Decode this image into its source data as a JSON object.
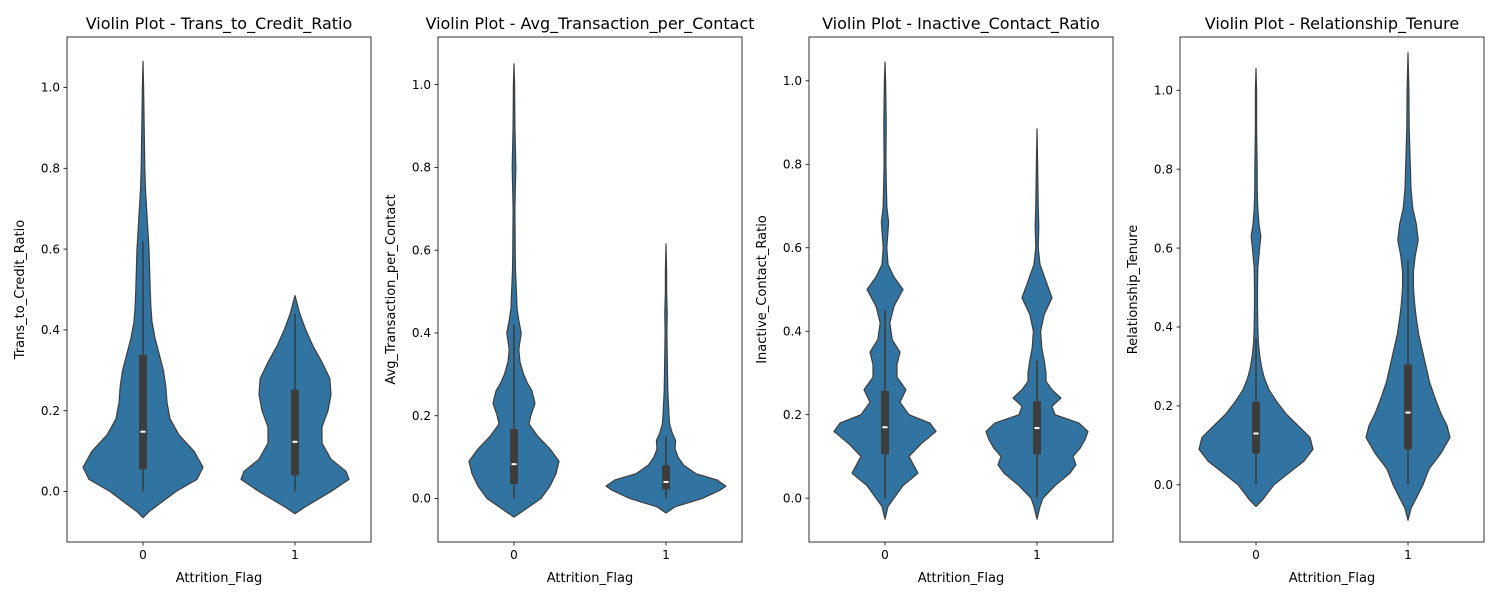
{
  "colors": {
    "violin": "#3274a1",
    "edge": "#3d3d3d",
    "box": "#3d3d3d",
    "median": "#ffffff"
  },
  "chart_data": [
    {
      "type": "violin",
      "title": "Violin Plot - Trans_to_Credit_Ratio",
      "xlabel": "Attrition_Flag",
      "ylabel": "Trans_to_Credit_Ratio",
      "categories": [
        "0",
        "1"
      ],
      "ylim": [
        -0.125,
        1.125
      ],
      "yticks": [
        0.0,
        0.2,
        0.4,
        0.6,
        0.8,
        1.0
      ],
      "ytick_labels": [
        "0.0",
        "0.2",
        "0.4",
        "0.6",
        "0.8",
        "1.0"
      ],
      "grid": false,
      "violins": [
        {
          "y": [
            -0.065,
            -0.05,
            0.0,
            0.03,
            0.06,
            0.1,
            0.14,
            0.18,
            0.22,
            0.26,
            0.3,
            0.34,
            0.38,
            0.42,
            0.46,
            0.5,
            0.55,
            0.6,
            0.65,
            0.7,
            0.75,
            0.8,
            0.9,
            1.0,
            1.065
          ],
          "w": [
            0.0,
            0.1,
            0.55,
            0.9,
            1.0,
            0.85,
            0.6,
            0.45,
            0.4,
            0.38,
            0.34,
            0.27,
            0.2,
            0.15,
            0.13,
            0.12,
            0.11,
            0.1,
            0.08,
            0.06,
            0.04,
            0.03,
            0.02,
            0.01,
            0.0
          ],
          "q1": 0.055,
          "median": 0.148,
          "q3": 0.338,
          "whisker_low": 0.0,
          "whisker_high": 0.62
        },
        {
          "y": [
            -0.055,
            -0.04,
            0.0,
            0.03,
            0.05,
            0.08,
            0.12,
            0.16,
            0.2,
            0.24,
            0.28,
            0.32,
            0.36,
            0.4,
            0.44,
            0.485
          ],
          "w": [
            0.0,
            0.15,
            0.6,
            0.9,
            0.85,
            0.6,
            0.45,
            0.45,
            0.55,
            0.6,
            0.58,
            0.45,
            0.3,
            0.18,
            0.08,
            0.0
          ],
          "q1": 0.04,
          "median": 0.123,
          "q3": 0.252,
          "whisker_low": 0.0,
          "whisker_high": 0.44
        }
      ]
    },
    {
      "type": "violin",
      "title": "Violin Plot - Avg_Transaction_per_Contact",
      "xlabel": "Attrition_Flag",
      "ylabel": "Avg_Transaction_per_Contact",
      "categories": [
        "0",
        "1"
      ],
      "ylim": [
        -0.105,
        1.115
      ],
      "yticks": [
        0.0,
        0.2,
        0.4,
        0.6,
        0.8,
        1.0
      ],
      "ytick_labels": [
        "0.0",
        "0.2",
        "0.4",
        "0.6",
        "0.8",
        "1.0"
      ],
      "grid": false,
      "violins": [
        {
          "y": [
            -0.045,
            -0.03,
            0.0,
            0.03,
            0.06,
            0.09,
            0.12,
            0.15,
            0.18,
            0.2,
            0.23,
            0.26,
            0.28,
            0.3,
            0.33,
            0.36,
            0.4,
            0.43,
            0.46,
            0.5,
            0.55,
            0.6,
            0.7,
            0.8,
            0.9,
            1.0,
            1.05
          ],
          "w": [
            0.0,
            0.15,
            0.45,
            0.6,
            0.7,
            0.75,
            0.6,
            0.4,
            0.25,
            0.28,
            0.35,
            0.3,
            0.22,
            0.16,
            0.1,
            0.08,
            0.12,
            0.08,
            0.05,
            0.04,
            0.025,
            0.02,
            0.015,
            0.03,
            0.015,
            0.01,
            0.0
          ],
          "q1": 0.035,
          "median": 0.083,
          "q3": 0.168,
          "whisker_low": 0.0,
          "whisker_high": 0.42
        },
        {
          "y": [
            -0.035,
            -0.02,
            0.0,
            0.02,
            0.03,
            0.045,
            0.06,
            0.08,
            0.1,
            0.12,
            0.14,
            0.16,
            0.18,
            0.2,
            0.23,
            0.26,
            0.3,
            0.35,
            0.4,
            0.45,
            0.5,
            0.55,
            0.615
          ],
          "w": [
            0.0,
            0.15,
            0.6,
            0.9,
            1.0,
            0.85,
            0.5,
            0.3,
            0.2,
            0.15,
            0.16,
            0.1,
            0.06,
            0.05,
            0.04,
            0.03,
            0.025,
            0.02,
            0.015,
            0.02,
            0.01,
            0.01,
            0.0
          ],
          "q1": 0.022,
          "median": 0.04,
          "q3": 0.08,
          "whisker_low": 0.0,
          "whisker_high": 0.15
        }
      ]
    },
    {
      "type": "violin",
      "title": "Violin Plot - Inactive_Contact_Ratio",
      "xlabel": "Attrition_Flag",
      "ylabel": "Inactive_Contact_Ratio",
      "categories": [
        "0",
        "1"
      ],
      "ylim": [
        -0.105,
        1.105
      ],
      "yticks": [
        0.0,
        0.2,
        0.4,
        0.6,
        0.8,
        1.0
      ],
      "ytick_labels": [
        "0.0",
        "0.2",
        "0.4",
        "0.6",
        "0.8",
        "1.0"
      ],
      "grid": false,
      "violins": [
        {
          "y": [
            -0.05,
            -0.02,
            0.0,
            0.03,
            0.06,
            0.1,
            0.13,
            0.16,
            0.18,
            0.2,
            0.23,
            0.26,
            0.29,
            0.32,
            0.35,
            0.38,
            0.42,
            0.46,
            0.5,
            0.53,
            0.56,
            0.6,
            0.64,
            0.66,
            0.7,
            0.8,
            0.9,
            1.0,
            1.045
          ],
          "w": [
            0.0,
            0.05,
            0.15,
            0.3,
            0.55,
            0.4,
            0.6,
            0.85,
            0.75,
            0.4,
            0.25,
            0.35,
            0.2,
            0.2,
            0.25,
            0.12,
            0.08,
            0.15,
            0.3,
            0.15,
            0.05,
            0.03,
            0.05,
            0.06,
            0.03,
            0.015,
            0.02,
            0.01,
            0.0
          ],
          "q1": 0.105,
          "median": 0.17,
          "q3": 0.257,
          "whisker_low": 0.0,
          "whisker_high": 0.45
        },
        {
          "y": [
            -0.05,
            -0.02,
            0.0,
            0.03,
            0.06,
            0.08,
            0.1,
            0.12,
            0.14,
            0.16,
            0.18,
            0.2,
            0.22,
            0.24,
            0.26,
            0.28,
            0.3,
            0.33,
            0.36,
            0.4,
            0.44,
            0.48,
            0.52,
            0.56,
            0.6,
            0.65,
            0.7,
            0.8,
            0.885
          ],
          "w": [
            0.0,
            0.05,
            0.1,
            0.3,
            0.55,
            0.65,
            0.6,
            0.72,
            0.8,
            0.85,
            0.7,
            0.3,
            0.25,
            0.4,
            0.25,
            0.15,
            0.15,
            0.12,
            0.08,
            0.06,
            0.12,
            0.25,
            0.15,
            0.05,
            0.02,
            0.03,
            0.02,
            0.01,
            0.0
          ],
          "q1": 0.105,
          "median": 0.168,
          "q3": 0.232,
          "whisker_low": 0.0,
          "whisker_high": 0.33
        }
      ]
    },
    {
      "type": "violin",
      "title": "Violin Plot - Relationship_Tenure",
      "xlabel": "Attrition_Flag",
      "ylabel": "Relationship_Tenure",
      "categories": [
        "0",
        "1"
      ],
      "ylim": [
        -0.145,
        1.135
      ],
      "yticks": [
        0.0,
        0.2,
        0.4,
        0.6,
        0.8,
        1.0
      ],
      "ytick_labels": [
        "0.0",
        "0.2",
        "0.4",
        "0.6",
        "0.8",
        "1.0"
      ],
      "grid": false,
      "violins": [
        {
          "y": [
            -0.055,
            -0.04,
            0.0,
            0.03,
            0.06,
            0.09,
            0.12,
            0.15,
            0.18,
            0.21,
            0.24,
            0.27,
            0.3,
            0.33,
            0.36,
            0.4,
            0.45,
            0.5,
            0.55,
            0.6,
            0.63,
            0.66,
            0.7,
            0.75,
            0.8,
            0.9,
            1.0,
            1.055
          ],
          "w": [
            0.0,
            0.1,
            0.3,
            0.55,
            0.8,
            0.95,
            0.9,
            0.7,
            0.5,
            0.35,
            0.22,
            0.14,
            0.09,
            0.06,
            0.04,
            0.03,
            0.025,
            0.025,
            0.03,
            0.06,
            0.08,
            0.05,
            0.03,
            0.02,
            0.02,
            0.01,
            0.01,
            0.0
          ],
          "q1": 0.08,
          "median": 0.13,
          "q3": 0.21,
          "whisker_low": 0.0,
          "whisker_high": 0.37
        },
        {
          "y": [
            -0.09,
            -0.06,
            -0.03,
            0.0,
            0.04,
            0.08,
            0.12,
            0.15,
            0.18,
            0.22,
            0.26,
            0.3,
            0.34,
            0.38,
            0.42,
            0.46,
            0.5,
            0.54,
            0.58,
            0.62,
            0.66,
            0.7,
            0.75,
            0.8,
            0.85,
            0.9,
            1.0,
            1.095
          ],
          "w": [
            0.0,
            0.05,
            0.15,
            0.25,
            0.35,
            0.55,
            0.7,
            0.65,
            0.55,
            0.45,
            0.36,
            0.3,
            0.24,
            0.18,
            0.14,
            0.11,
            0.09,
            0.09,
            0.12,
            0.17,
            0.14,
            0.08,
            0.05,
            0.04,
            0.03,
            0.02,
            0.015,
            0.0
          ],
          "q1": 0.09,
          "median": 0.183,
          "q3": 0.305,
          "whisker_low": 0.0,
          "whisker_high": 0.57
        }
      ]
    }
  ]
}
